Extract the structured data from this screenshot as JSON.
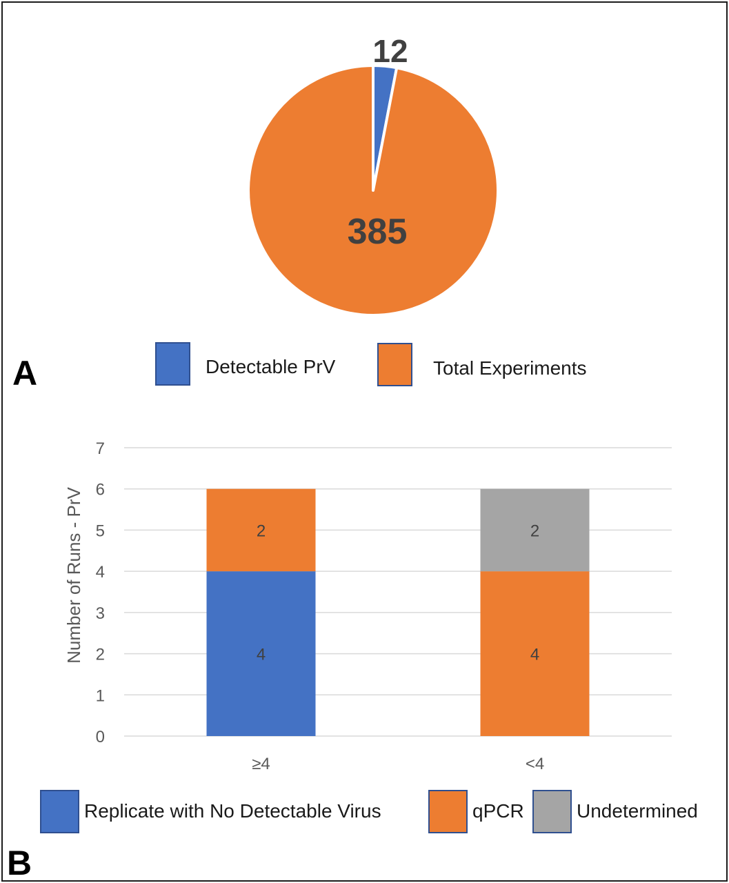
{
  "colors": {
    "blue": "#4472c4",
    "orange": "#ed7d31",
    "gray": "#a5a5a5",
    "grid": "#d9d9d9",
    "text": "#404040",
    "panel_label": "#000000"
  },
  "panels": {
    "a_label": "A",
    "b_label": "B"
  },
  "chart_data": [
    {
      "type": "pie",
      "title": "",
      "slices": [
        {
          "name": "Detectable PrV",
          "value": 12,
          "label": "12",
          "color": "#4472c4"
        },
        {
          "name": "Total Experiments",
          "value": 385,
          "label": "385",
          "color": "#ed7d31"
        }
      ],
      "legend_position": "bottom"
    },
    {
      "type": "bar",
      "stacked": true,
      "title": "",
      "categories": [
        "≥4",
        "<4"
      ],
      "series": [
        {
          "name": "Replicate with No Detectable Virus",
          "values": [
            4,
            0
          ],
          "color": "#4472c4"
        },
        {
          "name": "qPCR",
          "values": [
            2,
            4
          ],
          "color": "#ed7d31"
        },
        {
          "name": "Undetermined",
          "values": [
            0,
            2
          ],
          "color": "#a5a5a5"
        }
      ],
      "xlabel": "",
      "ylabel": "Number of Runs - PrV",
      "ylim": [
        0,
        7
      ],
      "yticks": [
        "0",
        "1",
        "2",
        "3",
        "4",
        "5",
        "6",
        "7"
      ],
      "grid": true,
      "legend_position": "bottom"
    }
  ]
}
